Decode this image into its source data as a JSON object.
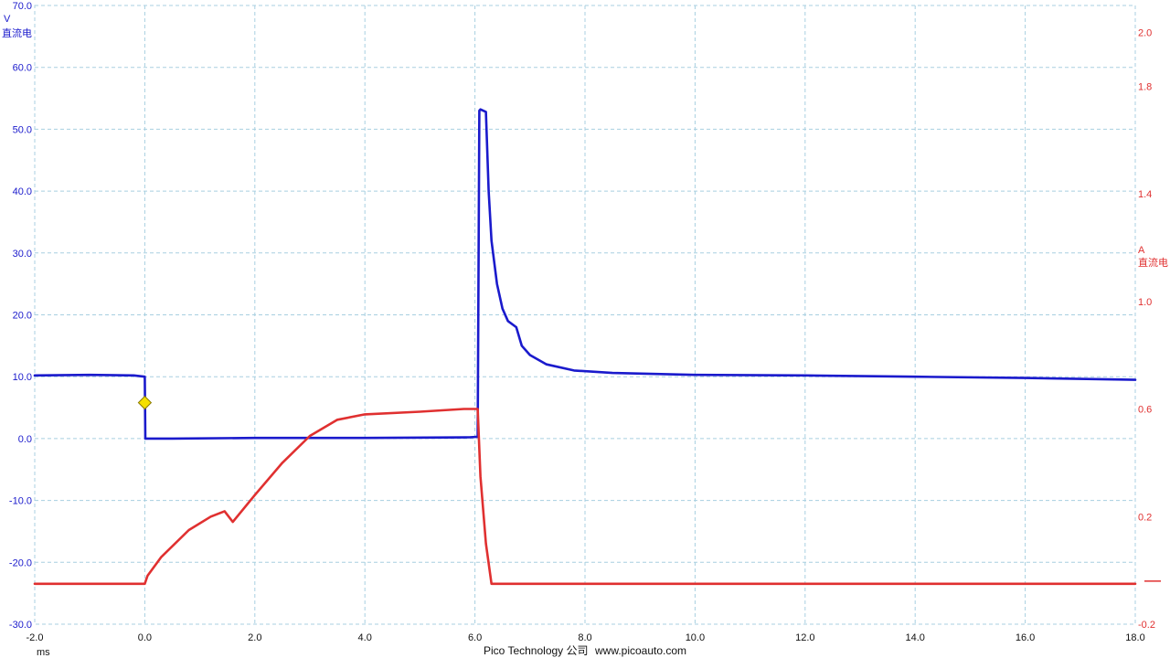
{
  "chart_data": {
    "type": "line",
    "x_unit": "ms",
    "xlim": [
      -2.0,
      18.0
    ],
    "x_ticks": [
      "-2.0",
      "0.0",
      "2.0",
      "4.0",
      "6.0",
      "8.0",
      "10.0",
      "12.0",
      "14.0",
      "16.0",
      "18.0"
    ],
    "grid": true,
    "left_axis": {
      "unit": "V",
      "coupling": "直流电",
      "ylim": [
        -30.0,
        70.0
      ],
      "ticks": [
        "70.0",
        "60.0",
        "50.0",
        "40.0",
        "30.0",
        "20.0",
        "10.0",
        "0.0",
        "-10.0",
        "-20.0",
        "-30.0"
      ]
    },
    "right_axis": {
      "unit": "A",
      "coupling": "直流电",
      "ylim": [
        -0.2,
        2.1
      ],
      "ticks": [
        "2.0",
        "1.8",
        "1.4",
        "1.0",
        "0.6",
        "0.2",
        "-0.2"
      ]
    },
    "series": [
      {
        "axis": "left",
        "color": "#1a1acc",
        "x": [
          -2.0,
          -1.0,
          -0.2,
          0.0,
          0.01,
          0.5,
          2.0,
          4.0,
          5.9,
          6.05,
          6.08,
          6.1,
          6.2,
          6.25,
          6.3,
          6.4,
          6.5,
          6.6,
          6.75,
          6.85,
          7.0,
          7.3,
          7.8,
          8.5,
          10.0,
          12.0,
          14.0,
          16.0,
          18.0
        ],
        "values": [
          10.2,
          10.3,
          10.2,
          10.0,
          0.0,
          0.0,
          0.1,
          0.1,
          0.2,
          0.3,
          53.0,
          53.2,
          52.8,
          40.0,
          32.0,
          25.0,
          21.0,
          19.0,
          18.0,
          15.0,
          13.5,
          12.0,
          11.0,
          10.6,
          10.3,
          10.2,
          10.0,
          9.8,
          9.5
        ]
      },
      {
        "axis": "right",
        "color": "#e03030",
        "x": [
          -2.0,
          -0.5,
          0.0,
          0.05,
          0.3,
          0.8,
          1.2,
          1.45,
          1.6,
          2.0,
          2.5,
          3.0,
          3.5,
          4.0,
          5.0,
          5.8,
          6.05,
          6.1,
          6.2,
          6.3,
          7.0,
          10.0,
          14.0,
          18.0
        ],
        "values": [
          -0.05,
          -0.05,
          -0.05,
          -0.02,
          0.05,
          0.15,
          0.2,
          0.22,
          0.18,
          0.28,
          0.4,
          0.5,
          0.56,
          0.58,
          0.59,
          0.6,
          0.6,
          0.35,
          0.1,
          -0.05,
          -0.05,
          -0.05,
          -0.05,
          -0.05
        ]
      }
    ],
    "trigger": {
      "x": 0.0,
      "y": 5.8,
      "color": "#f5e000"
    },
    "right_marker": {
      "y": -0.04,
      "color": "#e03030"
    }
  },
  "footer": {
    "brand": "Pico Technology 公司",
    "url": "www.picoauto.com"
  }
}
